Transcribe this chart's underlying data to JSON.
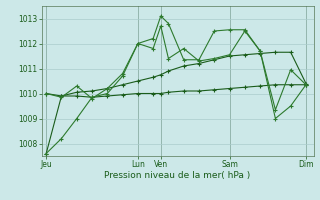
{
  "bg_color": "#cce8e8",
  "grid_color": "#aacccc",
  "line_color_dark": "#1a5c1a",
  "line_color_medium": "#2d7a2d",
  "xlabel": "Pression niveau de la mer( hPa )",
  "ylim": [
    1007.5,
    1013.5
  ],
  "yticks": [
    1008,
    1009,
    1010,
    1011,
    1012,
    1013
  ],
  "xtick_labels": [
    "Jeu",
    "Lun",
    "Ven",
    "Sam",
    "Dim"
  ],
  "xtick_positions": [
    0,
    6,
    7.5,
    12,
    17
  ],
  "vlines": [
    0,
    6,
    7.5,
    12,
    17
  ],
  "series1_dark": {
    "x": [
      0,
      1,
      2,
      3,
      4,
      5,
      6,
      7,
      7.5,
      8,
      9,
      10,
      11,
      12,
      13,
      14,
      15,
      16,
      17
    ],
    "y": [
      1007.6,
      1009.9,
      1009.9,
      1009.85,
      1009.9,
      1009.95,
      1010.0,
      1010.0,
      1010.0,
      1010.05,
      1010.1,
      1010.1,
      1010.15,
      1010.2,
      1010.25,
      1010.3,
      1010.35,
      1010.35,
      1010.35
    ]
  },
  "series2_dark": {
    "x": [
      0,
      1,
      2,
      3,
      4,
      5,
      6,
      7,
      7.5,
      8,
      9,
      10,
      11,
      12,
      13,
      14,
      15,
      16,
      17
    ],
    "y": [
      1010.0,
      1009.9,
      1010.05,
      1010.1,
      1010.2,
      1010.35,
      1010.5,
      1010.65,
      1010.75,
      1010.9,
      1011.1,
      1011.2,
      1011.35,
      1011.5,
      1011.55,
      1011.6,
      1011.65,
      1011.65,
      1010.4
    ]
  },
  "series3_light": {
    "x": [
      0,
      1,
      2,
      3,
      4,
      5,
      6,
      7,
      7.5,
      8,
      9,
      10,
      11,
      12,
      13,
      14,
      15,
      16,
      17
    ],
    "y": [
      1010.0,
      1009.85,
      1010.3,
      1009.8,
      1010.2,
      1010.8,
      1012.0,
      1012.2,
      1013.1,
      1012.8,
      1011.35,
      1011.35,
      1012.5,
      1012.55,
      1012.55,
      1011.7,
      1009.0,
      1009.5,
      1010.35
    ]
  },
  "series4_light": {
    "x": [
      0,
      1,
      2,
      3,
      4,
      5,
      6,
      7,
      7.5,
      8,
      9,
      10,
      11,
      12,
      13,
      14,
      15,
      16,
      17
    ],
    "y": [
      1007.6,
      1008.2,
      1009.0,
      1009.85,
      1010.0,
      1010.7,
      1012.0,
      1011.8,
      1012.7,
      1011.4,
      1011.8,
      1011.3,
      1011.4,
      1011.55,
      1012.5,
      1011.7,
      1009.35,
      1010.95,
      1010.35
    ]
  }
}
